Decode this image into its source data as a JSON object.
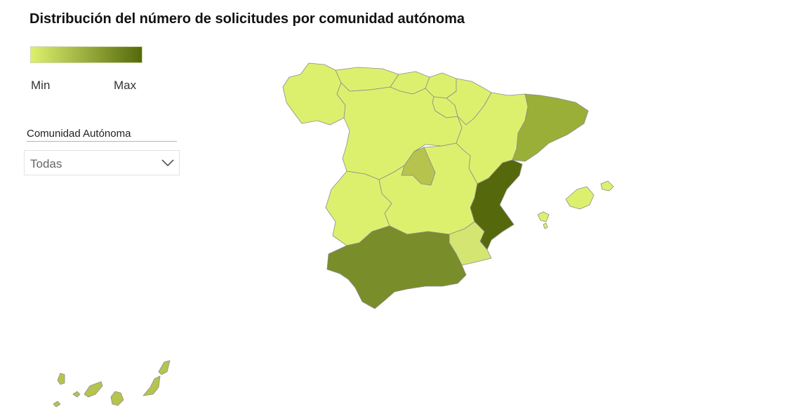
{
  "header": {
    "title": "Distribución del número de solicitudes por comunidad autónoma"
  },
  "legend": {
    "min_label": "Min",
    "max_label": "Max",
    "color_min": "#DDF06E",
    "color_max": "#55690C"
  },
  "slicer": {
    "label": "Comunidad Autónoma",
    "selected": "Todas"
  },
  "map": {
    "palette": {
      "lowest": "#DDF06E",
      "low": "#D5E572",
      "mid_low": "#B6C44E",
      "mid": "#9AAF38",
      "mid_high": "#798D2A",
      "highest": "#55690C"
    },
    "regions": [
      {
        "name": "Galicia",
        "level": "lowest"
      },
      {
        "name": "Asturias",
        "level": "lowest"
      },
      {
        "name": "Cantabria",
        "level": "lowest"
      },
      {
        "name": "País Vasco",
        "level": "lowest"
      },
      {
        "name": "Navarra",
        "level": "lowest"
      },
      {
        "name": "La Rioja",
        "level": "lowest"
      },
      {
        "name": "Aragón",
        "level": "lowest"
      },
      {
        "name": "Cataluña",
        "level": "mid"
      },
      {
        "name": "Castilla y León",
        "level": "lowest"
      },
      {
        "name": "Comunidad de Madrid",
        "level": "mid_low"
      },
      {
        "name": "Castilla-La Mancha",
        "level": "lowest"
      },
      {
        "name": "Extremadura",
        "level": "lowest"
      },
      {
        "name": "Comunidad Valenciana",
        "level": "highest"
      },
      {
        "name": "Región de Murcia",
        "level": "low"
      },
      {
        "name": "Andalucía",
        "level": "mid_high"
      },
      {
        "name": "Islas Baleares",
        "level": "lowest"
      },
      {
        "name": "Canarias",
        "level": "mid_low"
      }
    ]
  }
}
